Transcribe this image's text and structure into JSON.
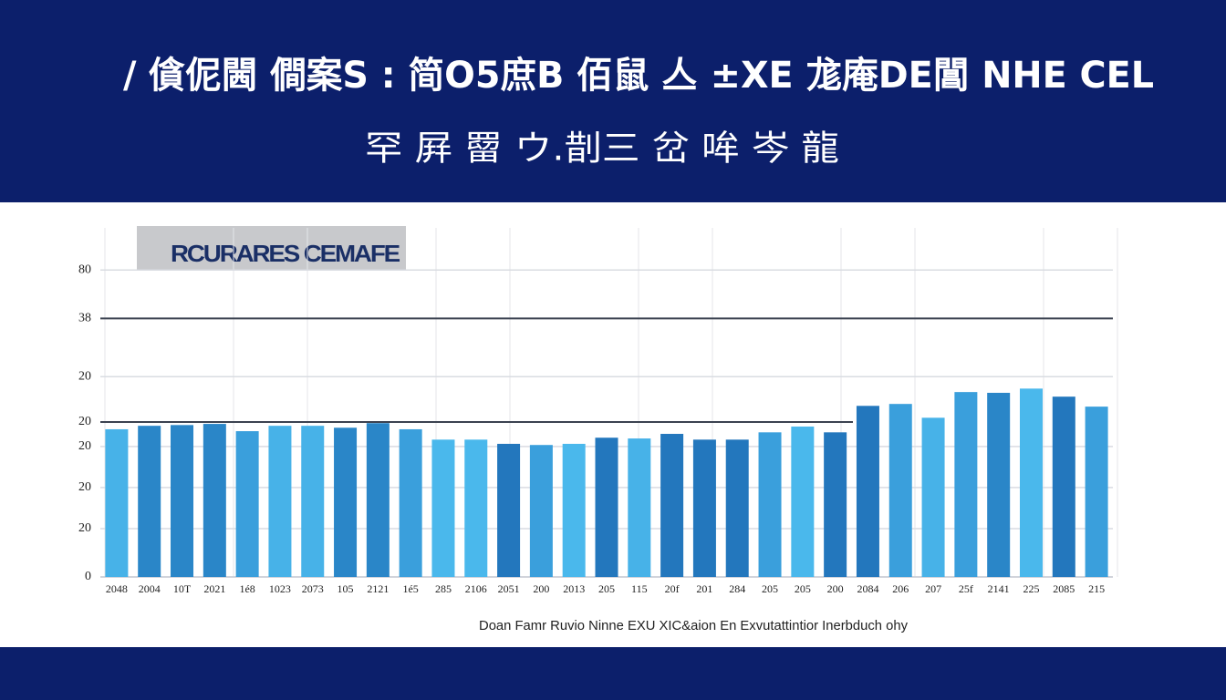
{
  "chart_data": {
    "type": "bar",
    "title": "/ 僋伲閪 僴案S : 简O5庶B 佰鼠 亼 ±XE 尨庵DE閶 NHE CEL",
    "subtitle": "罕 屛 罶 ウ.剒三 岔 哞 岑 龍",
    "annotation": "RCURARES CEMAFE",
    "note": "Doan Famr Ruvio Ninne EXU XIC&aion En Exvutattintior Inerbduch ohy",
    "categories": [
      "2048",
      "2004",
      "10T",
      "2021",
      "1é8",
      "1023",
      "2073",
      "105",
      "2121",
      "1é5",
      "285",
      "2106",
      "2051",
      "200",
      "2013",
      "205",
      "115",
      "20f",
      "201",
      "284",
      "205",
      "205",
      "200",
      "2084",
      "206",
      "207",
      "25f",
      "2141",
      "225",
      "2085",
      "215"
    ],
    "values": [
      38.5,
      39.4,
      39.6,
      39.9,
      38.0,
      39.4,
      39.4,
      38.9,
      40.1,
      38.5,
      35.8,
      35.8,
      34.7,
      34.4,
      34.7,
      36.3,
      36.1,
      37.3,
      35.8,
      35.8,
      37.7,
      39.2,
      37.7,
      44.6,
      45.1,
      41.5,
      48.2,
      48.0,
      49.1,
      47.0,
      44.4
    ],
    "colors": [
      "#47b2e8",
      "#2a86c8",
      "#2a86c8",
      "#2a86c8",
      "#3a9fdc",
      "#47b2e8",
      "#47b2e8",
      "#2a86c8",
      "#2a86c8",
      "#3a9fdc",
      "#4ab8ec",
      "#4ab8ec",
      "#2377bd",
      "#3a9fdc",
      "#4ab8ec",
      "#2377bd",
      "#47b2e8",
      "#2377bd",
      "#2377bd",
      "#2377bd",
      "#3a9fdc",
      "#4ab8ec",
      "#2377bd",
      "#2377bd",
      "#3a9fdc",
      "#47b2e8",
      "#3a9fdc",
      "#2a86c8",
      "#4ab8ec",
      "#2377bd",
      "#3a9fdc"
    ],
    "ylim": [
      0,
      91
    ],
    "yticks": [
      0,
      {
        "value": 12.6,
        "label": "20"
      },
      {
        "value": 23.3,
        "label": "20"
      },
      {
        "value": 34,
        "label": "20"
      },
      {
        "value": 40.4,
        "label": "20"
      },
      {
        "value": 52.2,
        "label": "20"
      },
      {
        "value": 67.4,
        "label": "38"
      },
      80
    ],
    "grid": true
  }
}
